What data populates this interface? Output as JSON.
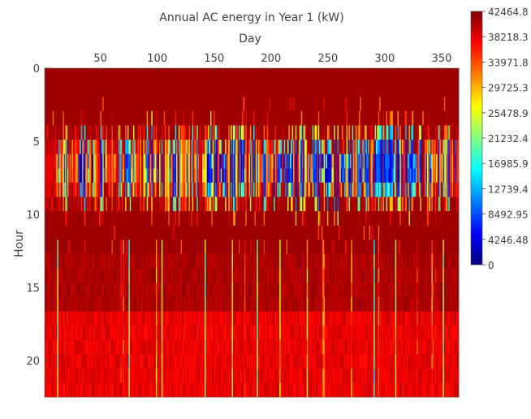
{
  "chart_data": {
    "type": "heatmap",
    "title": "Annual AC energy in Year 1 (kW)",
    "xlabel": "Day",
    "ylabel": "Hour",
    "x_axis_position": "top",
    "x_ticks": [
      50,
      100,
      150,
      200,
      250,
      300,
      350
    ],
    "y_ticks": [
      0,
      5,
      10,
      15,
      20
    ],
    "xlim": [
      1,
      365
    ],
    "ylim": [
      0,
      22.5
    ],
    "colorbar": {
      "min": 0,
      "max": 42464.8,
      "ticks": [
        "42464.8",
        "38218.3",
        "33971.8",
        "29725.3",
        "25478.9",
        "21232.4",
        "16985.9",
        "12739.4",
        "8492.95",
        "4246.48",
        "0"
      ]
    },
    "colormap": [
      "#00007f",
      "#0000ff",
      "#007fff",
      "#00ffff",
      "#7fff7f",
      "#ffff00",
      "#ff7f00",
      "#ff0000",
      "#7f0000"
    ],
    "pattern_summary": {
      "low_band_hours": [
        5,
        10
      ],
      "low_band_center_hour": 7,
      "high_band_hours": [
        17,
        22
      ],
      "notes": "Low (blue) values concentrate around hours 5-10 for many days; mid-afternoon to evening hours (17-22) show elevated red/orange values."
    }
  }
}
